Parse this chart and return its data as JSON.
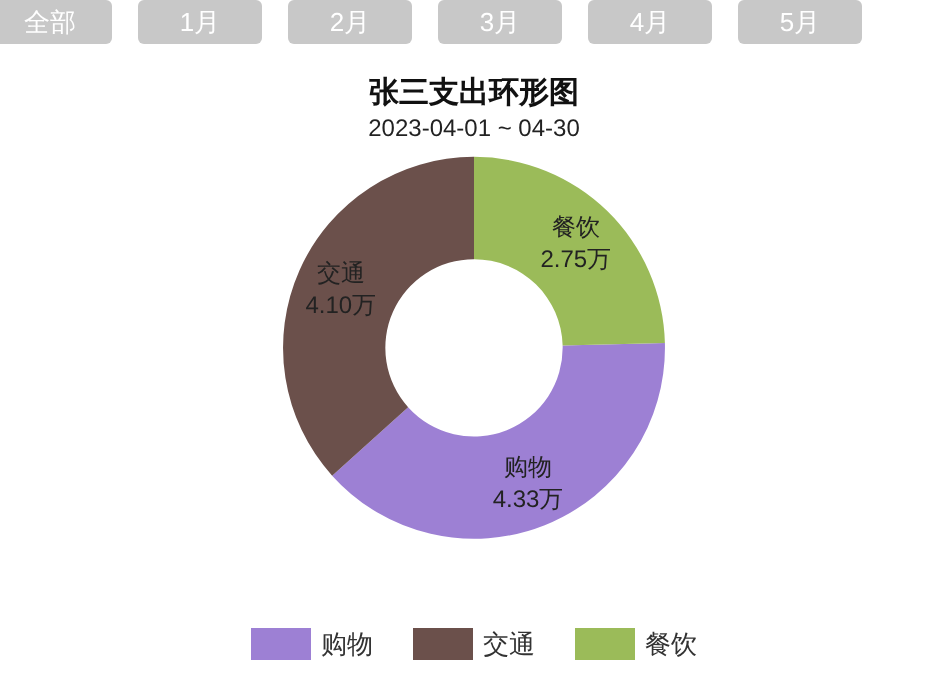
{
  "chart_data": {
    "type": "donut",
    "title": "张三支出环形图",
    "subtitle": "2023-04-01 ~ 04-30",
    "annotations": [
      "全部",
      "1月",
      "2月",
      "3月",
      "4月",
      "5月"
    ],
    "categories": [
      "购物",
      "交通",
      "餐饮"
    ],
    "values": [
      4.33,
      4.1,
      2.75
    ],
    "value_labels": [
      "4.33万",
      "4.10万",
      "2.75万"
    ],
    "colors": [
      "#9d80d4",
      "#6b504b",
      "#9bbb59"
    ],
    "legend": "bottom"
  }
}
